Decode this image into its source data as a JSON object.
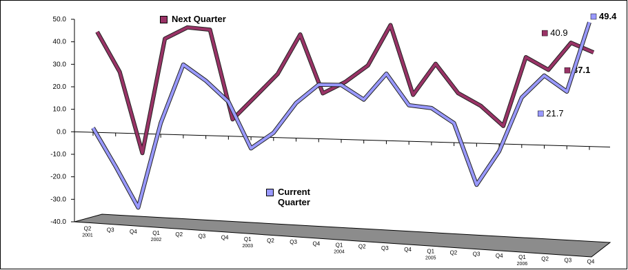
{
  "chart_data": {
    "type": "line3d",
    "categories": [
      [
        "Q2",
        "2001"
      ],
      [
        "Q3"
      ],
      [
        "Q4"
      ],
      [
        "Q1",
        "2002"
      ],
      [
        "Q2"
      ],
      [
        "Q3"
      ],
      [
        "Q4"
      ],
      [
        "Q1",
        "2003"
      ],
      [
        "Q2"
      ],
      [
        "Q3"
      ],
      [
        "Q4"
      ],
      [
        "Q1",
        "2004"
      ],
      [
        "Q2"
      ],
      [
        "Q3"
      ],
      [
        "Q4"
      ],
      [
        "Q1",
        "2005"
      ],
      [
        "Q2"
      ],
      [
        "Q3"
      ],
      [
        "Q4"
      ],
      [
        "Q1",
        "2006"
      ],
      [
        "Q2"
      ],
      [
        "Q3"
      ],
      [
        "Q4"
      ]
    ],
    "series": [
      {
        "name": "Next Quarter",
        "color": "#993366",
        "values": [
          45,
          27,
          -9,
          42,
          47,
          46,
          7,
          17,
          27,
          44,
          19,
          24,
          31,
          48,
          19,
          32,
          20,
          15,
          7,
          35,
          30,
          40.9,
          37.1
        ],
        "value_labels": [
          null,
          null,
          null,
          null,
          null,
          null,
          null,
          null,
          null,
          null,
          null,
          null,
          null,
          null,
          null,
          null,
          null,
          null,
          null,
          null,
          null,
          "40.9",
          "37.1"
        ]
      },
      {
        "name": "Current Quarter",
        "color": "#9999ff",
        "values": [
          2,
          -15,
          -33,
          5,
          31,
          24,
          15,
          -5,
          2,
          15,
          23,
          23,
          17,
          28,
          15,
          14,
          8,
          -17,
          -3,
          19,
          28,
          21.7,
          49.4
        ],
        "value_labels": [
          null,
          null,
          null,
          null,
          null,
          null,
          null,
          null,
          null,
          null,
          null,
          null,
          null,
          null,
          null,
          null,
          null,
          null,
          null,
          null,
          null,
          "21.7",
          "49.4"
        ]
      }
    ],
    "ylim": [
      -40,
      50
    ],
    "yticks": [
      {
        "value": -40,
        "label": "-40.0"
      },
      {
        "value": -30,
        "label": "-30.0"
      },
      {
        "value": -20,
        "label": "-20.0"
      },
      {
        "value": -10,
        "label": "-10.0"
      },
      {
        "value": 0,
        "label": "0.0"
      },
      {
        "value": 10,
        "label": "10.0"
      },
      {
        "value": 20,
        "label": "20.0"
      },
      {
        "value": 30,
        "label": "30.0"
      },
      {
        "value": 40,
        "label": "40.0"
      },
      {
        "value": 50,
        "label": "50.0"
      }
    ],
    "grid": false
  }
}
